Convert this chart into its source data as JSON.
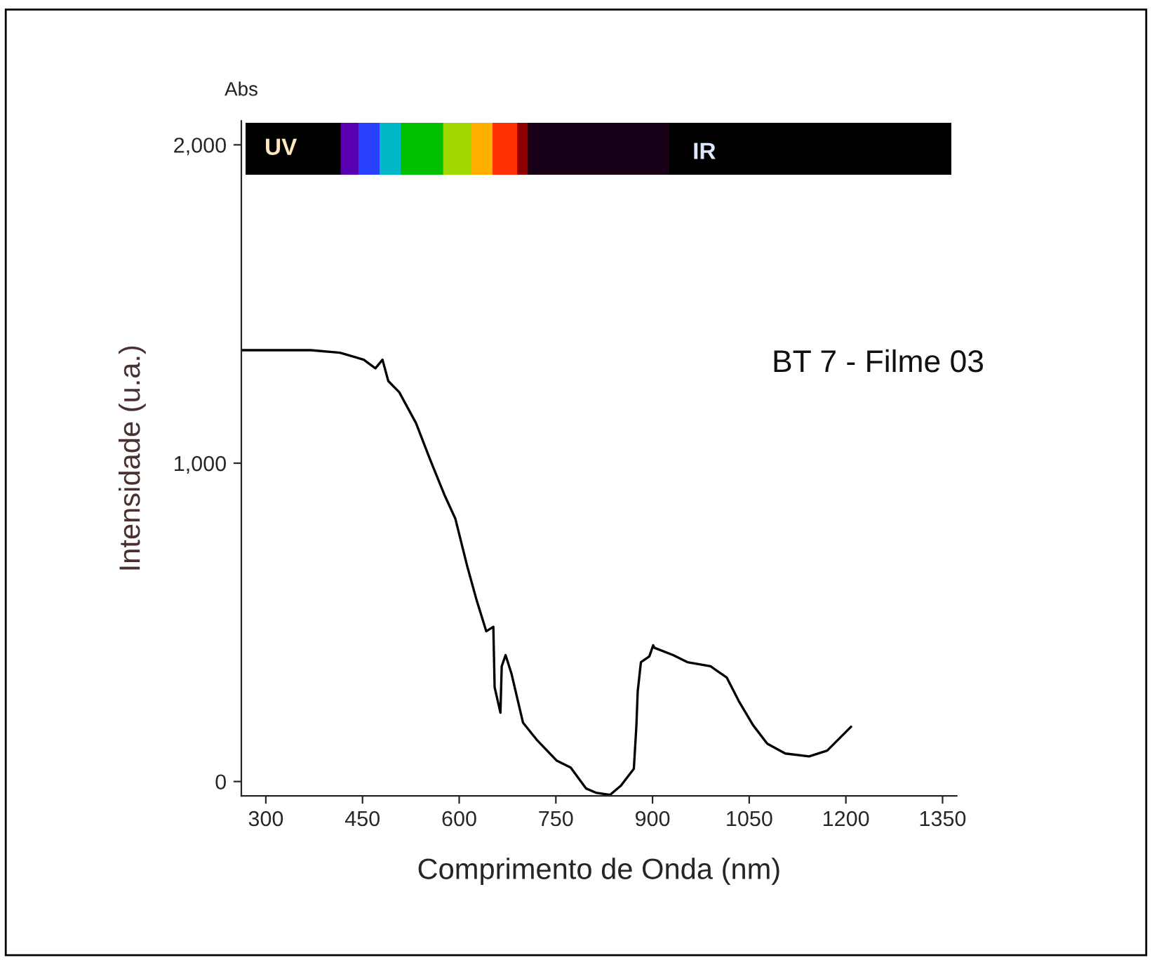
{
  "chart_data": {
    "type": "line",
    "xlabel": "Comprimento de Onda (nm)",
    "ylabel": "Intensidade (u.a.)",
    "annotations": [
      "Abs",
      "UV",
      "IR",
      "BT 7 - Filme 03"
    ],
    "x": [
      262,
      370,
      415,
      452,
      470,
      481,
      490,
      507,
      533,
      555,
      577,
      594,
      612,
      627,
      642,
      653,
      655,
      664,
      666,
      672,
      681,
      699,
      720,
      751,
      773,
      797,
      812,
      834,
      851,
      871,
      875,
      877,
      882,
      895,
      901,
      903,
      932,
      954,
      990,
      1015,
      1034,
      1056,
      1078,
      1106,
      1143,
      1171,
      1208
    ],
    "series": [
      {
        "color": "#000000",
        "values": [
          1355,
          1355,
          1347,
          1325,
          1298,
          1325,
          1258,
          1223,
          1126,
          1011,
          901,
          826,
          680,
          570,
          472,
          486,
          296,
          216,
          362,
          397,
          340,
          185,
          132,
          66,
          44,
          -22,
          -35,
          -42,
          -13,
          40,
          177,
          283,
          375,
          393,
          428,
          420,
          397,
          375,
          362,
          327,
          252,
          177,
          119,
          88,
          79,
          97,
          172
        ]
      }
    ],
    "xlim": [
      262,
      1372
    ],
    "xticks": [
      300,
      450,
      600,
      750,
      900,
      1050,
      1200,
      1350
    ],
    "ylim": [
      -45,
      2075
    ],
    "yticks": [
      0,
      {
        "value": 1000,
        "label": "1,000"
      },
      {
        "value": 2000,
        "label": "2,000"
      }
    ],
    "grid": false,
    "legend": false,
    "marker": "none",
    "line_style": "solid"
  }
}
